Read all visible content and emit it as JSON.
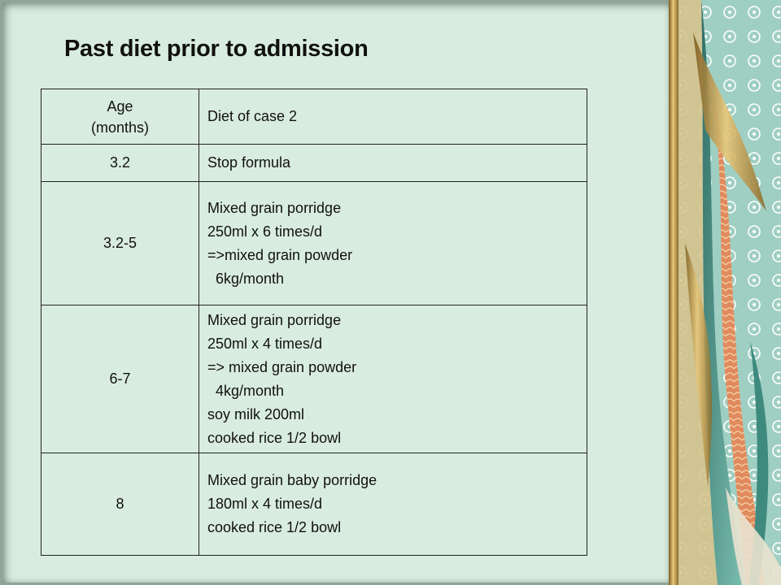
{
  "title": "Past diet prior to admission",
  "table": {
    "header": {
      "age_line1": "Age",
      "age_line2": "(months)",
      "diet": "Diet of case 2"
    },
    "rows": [
      {
        "age": "3.2",
        "diet_lines": [
          "Stop formula"
        ]
      },
      {
        "age": "3.2-5",
        "diet_lines": [
          "Mixed grain porridge",
          "250ml x 6 times/d",
          "=>mixed grain powder",
          "  6kg/month"
        ]
      },
      {
        "age": "6-7",
        "diet_lines": [
          "Mixed grain porridge",
          "250ml x 4 times/d",
          "=> mixed grain powder",
          "  4kg/month",
          "soy milk 200ml",
          "cooked rice 1/2 bowl"
        ]
      },
      {
        "age": "8",
        "diet_lines": [
          "Mixed grain baby porridge",
          "180ml x 4 times/d",
          "cooked rice 1/2 bowl"
        ]
      }
    ]
  },
  "colors": {
    "slide_background": "#d9ece0",
    "decor_teal": "#5aa89a",
    "decor_gold": "#c9a04a",
    "decor_coral": "#e0785a"
  }
}
